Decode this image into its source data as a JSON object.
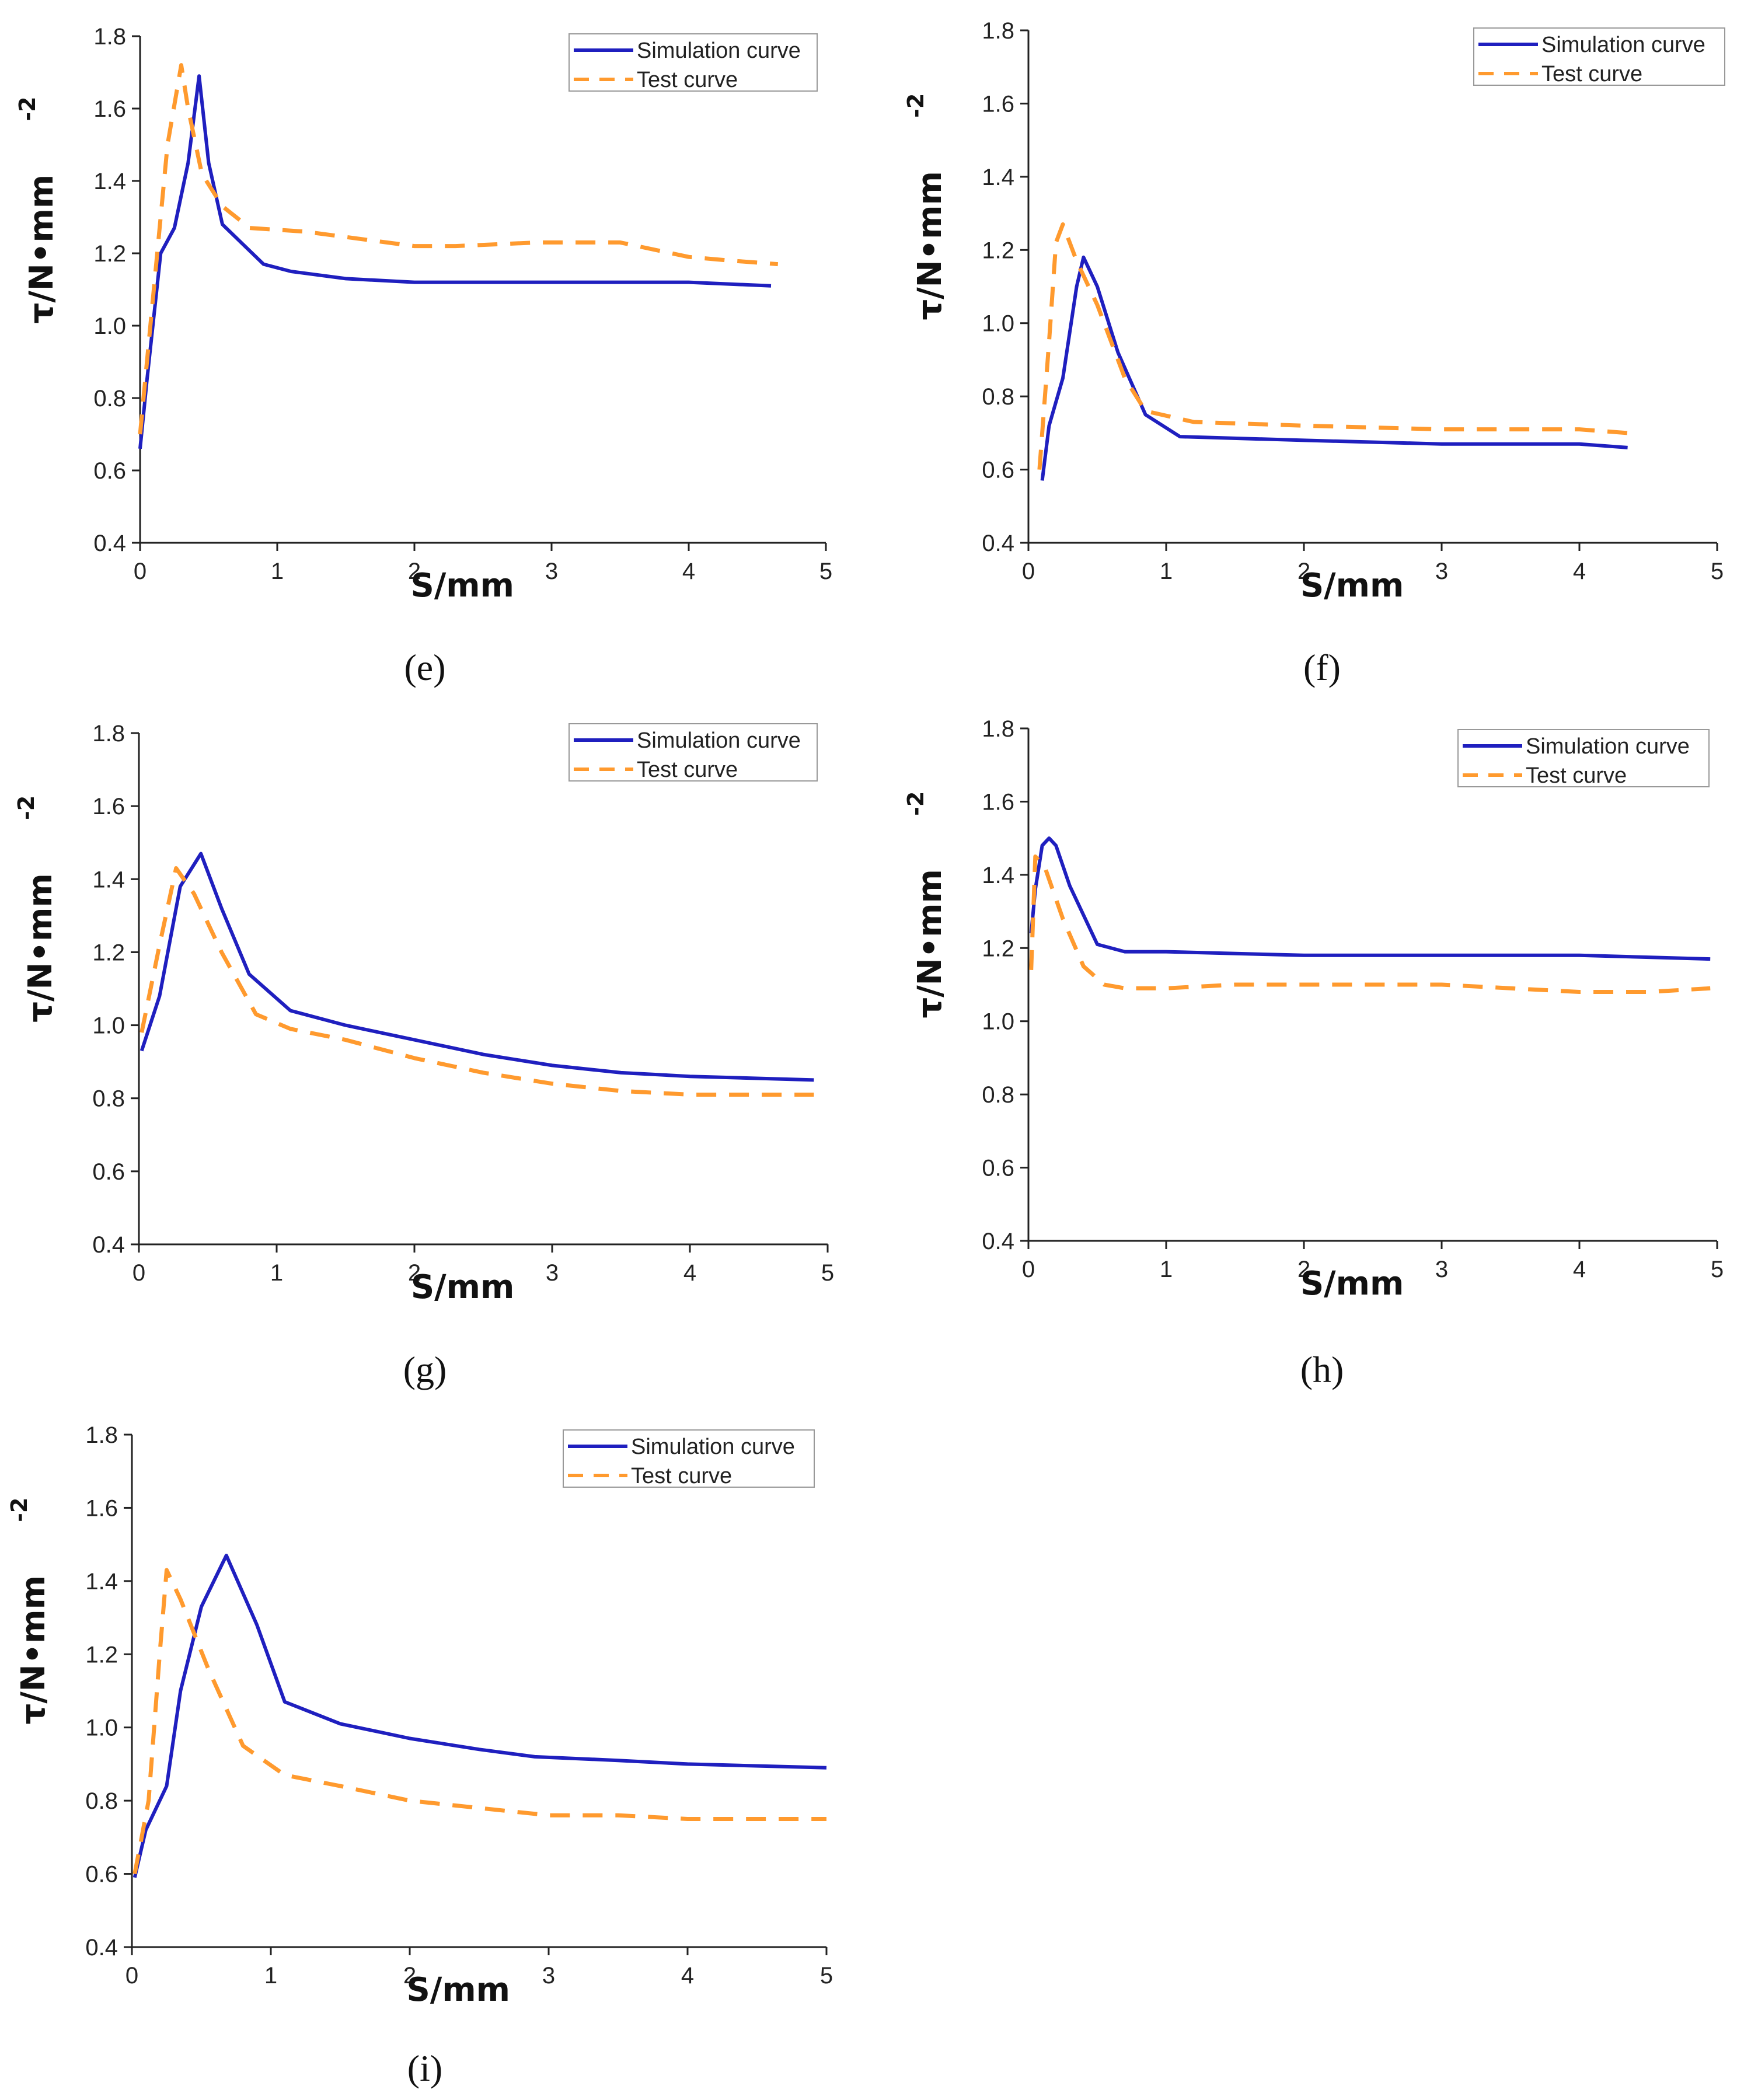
{
  "colors": {
    "simulation": "#1f1fbf",
    "test": "#ff9a2e",
    "axis": "#222222"
  },
  "chart_data": [
    {
      "type": "line",
      "panel_label": "(e)",
      "xlabel": "S/mm",
      "ylabel": "τ/N•mm",
      "ylabel_exponent": "-2",
      "x_ticks": [
        "0",
        "1",
        "2",
        "3",
        "4",
        "5"
      ],
      "y_ticks": [
        "0.4",
        "0.6",
        "0.8",
        "1.0",
        "1.2",
        "1.4",
        "1.6",
        "1.8"
      ],
      "xlim": [
        0,
        5
      ],
      "ylim": [
        0.4,
        1.8
      ],
      "legend": [
        "Simulation curve",
        "Test curve"
      ],
      "series": [
        {
          "name": "Simulation curve",
          "points": [
            [
              0,
              0.66
            ],
            [
              0.05,
              0.85
            ],
            [
              0.15,
              1.2
            ],
            [
              0.25,
              1.27
            ],
            [
              0.35,
              1.45
            ],
            [
              0.43,
              1.69
            ],
            [
              0.5,
              1.45
            ],
            [
              0.6,
              1.28
            ],
            [
              0.9,
              1.17
            ],
            [
              1.1,
              1.15
            ],
            [
              1.5,
              1.13
            ],
            [
              2.0,
              1.12
            ],
            [
              3.0,
              1.12
            ],
            [
              4.0,
              1.12
            ],
            [
              4.6,
              1.11
            ]
          ]
        },
        {
          "name": "Test curve",
          "points": [
            [
              0,
              0.7
            ],
            [
              0.1,
              1.1
            ],
            [
              0.2,
              1.5
            ],
            [
              0.3,
              1.72
            ],
            [
              0.35,
              1.6
            ],
            [
              0.45,
              1.42
            ],
            [
              0.6,
              1.33
            ],
            [
              0.8,
              1.27
            ],
            [
              1.2,
              1.26
            ],
            [
              2.0,
              1.22
            ],
            [
              2.3,
              1.22
            ],
            [
              2.9,
              1.23
            ],
            [
              3.5,
              1.23
            ],
            [
              4.0,
              1.19
            ],
            [
              4.3,
              1.18
            ],
            [
              4.65,
              1.17
            ]
          ]
        }
      ]
    },
    {
      "type": "line",
      "panel_label": "(f)",
      "xlabel": "S/mm",
      "ylabel": "τ/N•mm",
      "ylabel_exponent": "-2",
      "x_ticks": [
        "0",
        "1",
        "2",
        "3",
        "4",
        "5"
      ],
      "y_ticks": [
        "0.4",
        "0.6",
        "0.8",
        "1.0",
        "1.2",
        "1.4",
        "1.6",
        "1.8"
      ],
      "xlim": [
        0,
        5
      ],
      "ylim": [
        0.4,
        1.8
      ],
      "legend": [
        "Simulation curve",
        "Test curve"
      ],
      "series": [
        {
          "name": "Simulation curve",
          "points": [
            [
              0.1,
              0.57
            ],
            [
              0.15,
              0.72
            ],
            [
              0.25,
              0.85
            ],
            [
              0.35,
              1.1
            ],
            [
              0.4,
              1.18
            ],
            [
              0.5,
              1.1
            ],
            [
              0.65,
              0.92
            ],
            [
              0.85,
              0.75
            ],
            [
              1.1,
              0.69
            ],
            [
              2.0,
              0.68
            ],
            [
              3.0,
              0.67
            ],
            [
              4.0,
              0.67
            ],
            [
              4.35,
              0.66
            ]
          ]
        },
        {
          "name": "Test curve",
          "points": [
            [
              0.08,
              0.6
            ],
            [
              0.15,
              0.95
            ],
            [
              0.2,
              1.22
            ],
            [
              0.25,
              1.27
            ],
            [
              0.35,
              1.17
            ],
            [
              0.5,
              1.05
            ],
            [
              0.7,
              0.85
            ],
            [
              0.85,
              0.76
            ],
            [
              1.2,
              0.73
            ],
            [
              2.0,
              0.72
            ],
            [
              3.0,
              0.71
            ],
            [
              4.0,
              0.71
            ],
            [
              4.35,
              0.7
            ]
          ]
        }
      ]
    },
    {
      "type": "line",
      "panel_label": "(g)",
      "xlabel": "S/mm",
      "ylabel": "τ/N•mm",
      "ylabel_exponent": "-2",
      "x_ticks": [
        "0",
        "1",
        "2",
        "3",
        "4",
        "5"
      ],
      "y_ticks": [
        "0.4",
        "0.6",
        "0.8",
        "1.0",
        "1.2",
        "1.4",
        "1.6",
        "1.8"
      ],
      "xlim": [
        0,
        5
      ],
      "ylim": [
        0.4,
        1.8
      ],
      "legend": [
        "Simulation curve",
        "Test curve"
      ],
      "series": [
        {
          "name": "Simulation curve",
          "points": [
            [
              0.02,
              0.93
            ],
            [
              0.15,
              1.08
            ],
            [
              0.3,
              1.38
            ],
            [
              0.45,
              1.47
            ],
            [
              0.6,
              1.32
            ],
            [
              0.8,
              1.14
            ],
            [
              1.1,
              1.04
            ],
            [
              1.5,
              1.0
            ],
            [
              2.0,
              0.96
            ],
            [
              2.5,
              0.92
            ],
            [
              3.0,
              0.89
            ],
            [
              3.5,
              0.87
            ],
            [
              4.0,
              0.86
            ],
            [
              4.9,
              0.85
            ]
          ]
        },
        {
          "name": "Test curve",
          "points": [
            [
              0.02,
              0.98
            ],
            [
              0.15,
              1.22
            ],
            [
              0.27,
              1.43
            ],
            [
              0.4,
              1.36
            ],
            [
              0.6,
              1.2
            ],
            [
              0.85,
              1.03
            ],
            [
              1.1,
              0.99
            ],
            [
              1.5,
              0.96
            ],
            [
              2.0,
              0.91
            ],
            [
              2.5,
              0.87
            ],
            [
              3.0,
              0.84
            ],
            [
              3.5,
              0.82
            ],
            [
              4.0,
              0.81
            ],
            [
              4.9,
              0.81
            ]
          ]
        }
      ]
    },
    {
      "type": "line",
      "panel_label": "(h)",
      "xlabel": "S/mm",
      "ylabel": "τ/N•mm",
      "ylabel_exponent": "-2",
      "x_ticks": [
        "0",
        "1",
        "2",
        "3",
        "4",
        "5"
      ],
      "y_ticks": [
        "0.4",
        "0.6",
        "0.8",
        "1.0",
        "1.2",
        "1.4",
        "1.6",
        "1.8"
      ],
      "xlim": [
        0,
        5
      ],
      "ylim": [
        0.4,
        1.8
      ],
      "legend": [
        "Simulation curve",
        "Test curve"
      ],
      "series": [
        {
          "name": "Simulation curve",
          "points": [
            [
              0.02,
              1.24
            ],
            [
              0.05,
              1.36
            ],
            [
              0.1,
              1.48
            ],
            [
              0.15,
              1.5
            ],
            [
              0.2,
              1.48
            ],
            [
              0.3,
              1.37
            ],
            [
              0.5,
              1.21
            ],
            [
              0.7,
              1.19
            ],
            [
              1.0,
              1.19
            ],
            [
              2.0,
              1.18
            ],
            [
              3.0,
              1.18
            ],
            [
              4.0,
              1.18
            ],
            [
              4.95,
              1.17
            ]
          ]
        },
        {
          "name": "Test curve",
          "points": [
            [
              0.02,
              1.14
            ],
            [
              0.05,
              1.45
            ],
            [
              0.12,
              1.42
            ],
            [
              0.25,
              1.28
            ],
            [
              0.4,
              1.15
            ],
            [
              0.55,
              1.1
            ],
            [
              0.7,
              1.09
            ],
            [
              1.0,
              1.09
            ],
            [
              1.5,
              1.1
            ],
            [
              2.0,
              1.1
            ],
            [
              3.0,
              1.1
            ],
            [
              3.5,
              1.09
            ],
            [
              4.0,
              1.08
            ],
            [
              4.5,
              1.08
            ],
            [
              4.95,
              1.09
            ]
          ]
        }
      ]
    },
    {
      "type": "line",
      "panel_label": "(i)",
      "xlabel": "S/mm",
      "ylabel": "τ/N•mm",
      "ylabel_exponent": "-2",
      "x_ticks": [
        "0",
        "1",
        "2",
        "3",
        "4",
        "5"
      ],
      "y_ticks": [
        "0.4",
        "0.6",
        "0.8",
        "1.0",
        "1.2",
        "1.4",
        "1.6",
        "1.8"
      ],
      "xlim": [
        0,
        5
      ],
      "ylim": [
        0.4,
        1.8
      ],
      "legend": [
        "Simulation curve",
        "Test curve"
      ],
      "series": [
        {
          "name": "Simulation curve",
          "points": [
            [
              0.02,
              0.59
            ],
            [
              0.1,
              0.72
            ],
            [
              0.25,
              0.84
            ],
            [
              0.35,
              1.1
            ],
            [
              0.5,
              1.33
            ],
            [
              0.68,
              1.47
            ],
            [
              0.9,
              1.28
            ],
            [
              1.1,
              1.07
            ],
            [
              1.5,
              1.01
            ],
            [
              2.0,
              0.97
            ],
            [
              2.5,
              0.94
            ],
            [
              2.9,
              0.92
            ],
            [
              3.5,
              0.91
            ],
            [
              4.0,
              0.9
            ],
            [
              5.0,
              0.89
            ]
          ]
        },
        {
          "name": "Test curve",
          "points": [
            [
              0.02,
              0.6
            ],
            [
              0.12,
              0.8
            ],
            [
              0.2,
              1.2
            ],
            [
              0.25,
              1.43
            ],
            [
              0.35,
              1.35
            ],
            [
              0.55,
              1.16
            ],
            [
              0.8,
              0.95
            ],
            [
              1.1,
              0.87
            ],
            [
              1.5,
              0.84
            ],
            [
              2.0,
              0.8
            ],
            [
              2.5,
              0.78
            ],
            [
              3.0,
              0.76
            ],
            [
              3.5,
              0.76
            ],
            [
              4.0,
              0.75
            ],
            [
              5.0,
              0.75
            ]
          ]
        }
      ]
    }
  ]
}
